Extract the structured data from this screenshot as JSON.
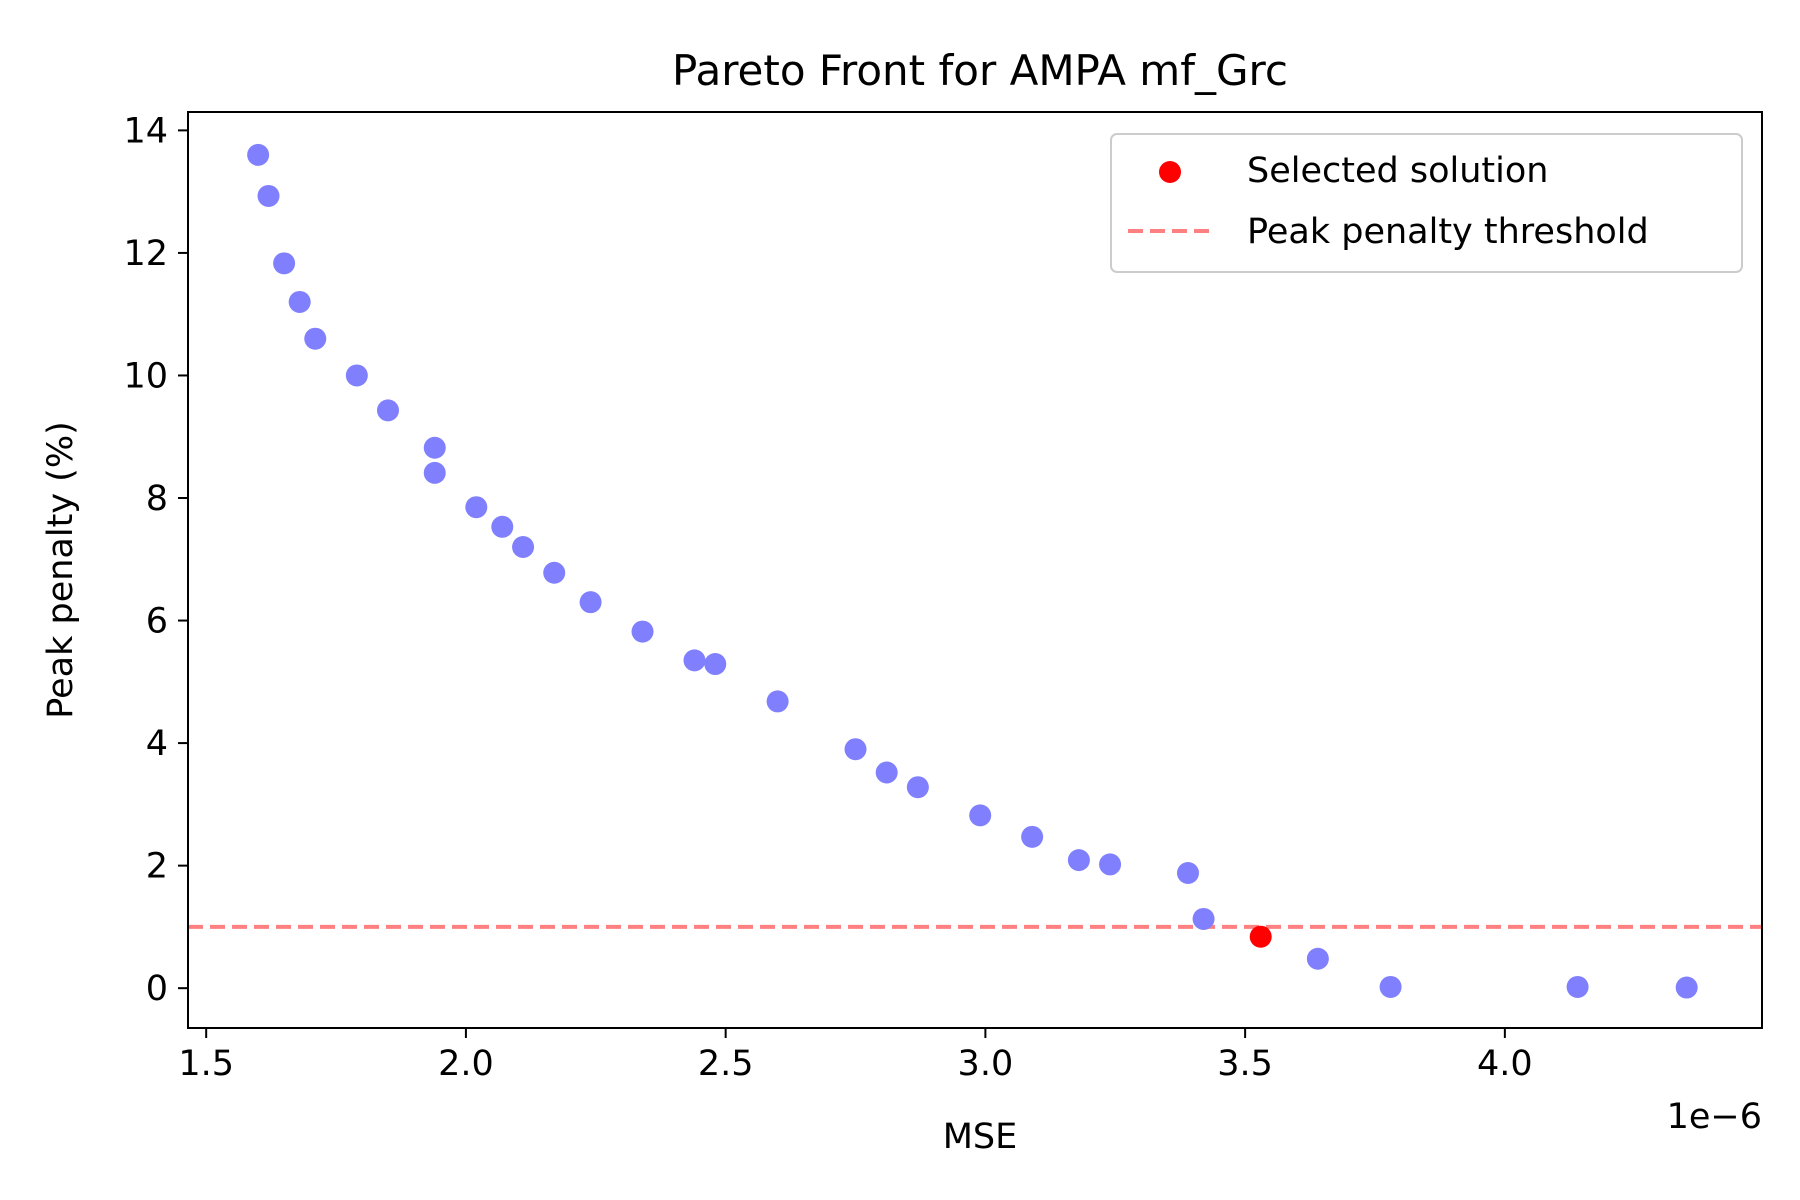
{
  "chart_data": {
    "type": "scatter",
    "title": "Pareto Front for AMPA mf_Grc",
    "xlabel": "MSE",
    "ylabel": "Peak penalty (%)",
    "x_offset_label": "1e−6",
    "xlim": [
      1.465,
      4.495
    ],
    "ylim": [
      -0.65,
      14.3
    ],
    "x_ticks": [
      1.5,
      2.0,
      2.5,
      3.0,
      3.5,
      4.0
    ],
    "x_tick_labels": [
      "1.5",
      "2.0",
      "2.5",
      "3.0",
      "3.5",
      "4.0"
    ],
    "y_ticks": [
      0,
      2,
      4,
      6,
      8,
      10,
      12,
      14
    ],
    "y_tick_labels": [
      "0",
      "2",
      "4",
      "6",
      "8",
      "10",
      "12",
      "14"
    ],
    "grid": false,
    "legend_position": "top-right",
    "series": [
      {
        "name": "",
        "color": "#8080ff",
        "points": [
          [
            1.6,
            13.6
          ],
          [
            1.62,
            12.93
          ],
          [
            1.65,
            11.83
          ],
          [
            1.68,
            11.2
          ],
          [
            1.71,
            10.6
          ],
          [
            1.79,
            10.0
          ],
          [
            1.85,
            9.43
          ],
          [
            1.94,
            8.82
          ],
          [
            1.94,
            8.41
          ],
          [
            2.02,
            7.85
          ],
          [
            2.07,
            7.53
          ],
          [
            2.11,
            7.2
          ],
          [
            2.17,
            6.78
          ],
          [
            2.24,
            6.3
          ],
          [
            2.34,
            5.82
          ],
          [
            2.44,
            5.35
          ],
          [
            2.48,
            5.29
          ],
          [
            2.6,
            4.68
          ],
          [
            2.75,
            3.9
          ],
          [
            2.81,
            3.52
          ],
          [
            2.87,
            3.28
          ],
          [
            2.99,
            2.82
          ],
          [
            3.09,
            2.47
          ],
          [
            3.18,
            2.09
          ],
          [
            3.24,
            2.02
          ],
          [
            3.39,
            1.88
          ],
          [
            3.42,
            1.13
          ],
          [
            3.64,
            0.48
          ],
          [
            3.78,
            0.02
          ],
          [
            4.14,
            0.02
          ],
          [
            4.35,
            0.01
          ]
        ]
      }
    ],
    "selected": {
      "name": "Selected solution",
      "color": "#ff0000",
      "point": [
        3.53,
        0.84
      ]
    },
    "threshold": {
      "name": "Peak penalty threshold",
      "color": "#ff8080",
      "y": 1.0
    }
  }
}
